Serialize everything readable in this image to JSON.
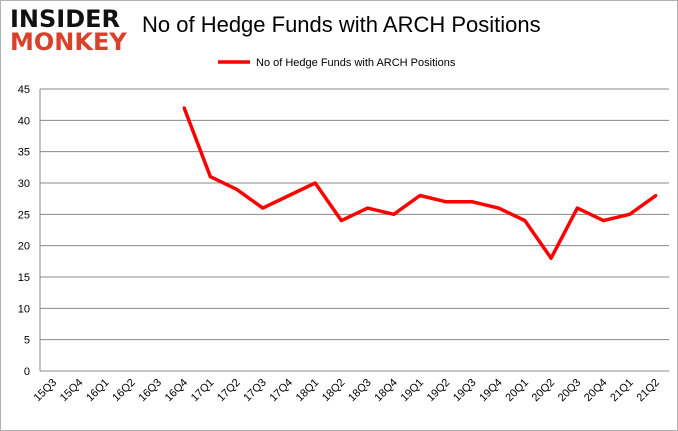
{
  "logo": {
    "line1": "INSIDER",
    "line2": "MONKEY"
  },
  "chart_data": {
    "type": "line",
    "title": "No of Hedge Funds with ARCH Positions",
    "xlabel": "",
    "ylabel": "",
    "ylim": [
      0,
      45
    ],
    "yticks": [
      0,
      5,
      10,
      15,
      20,
      25,
      30,
      35,
      40,
      45
    ],
    "grid": true,
    "legend_placement": "top-center",
    "categories": [
      "15Q3",
      "15Q4",
      "16Q1",
      "16Q2",
      "16Q3",
      "16Q4",
      "17Q1",
      "17Q2",
      "17Q3",
      "17Q4",
      "18Q1",
      "18Q2",
      "18Q3",
      "18Q4",
      "19Q1",
      "19Q2",
      "19Q3",
      "19Q4",
      "20Q1",
      "20Q2",
      "20Q3",
      "20Q4",
      "21Q1",
      "21Q2"
    ],
    "series": [
      {
        "name": "No of Hedge Funds with ARCH Positions",
        "color": "#ff0000",
        "values": [
          null,
          null,
          null,
          null,
          null,
          42,
          31,
          29,
          26,
          28,
          30,
          24,
          26,
          25,
          28,
          27,
          27,
          26,
          24,
          18,
          26,
          24,
          25,
          28
        ]
      }
    ]
  }
}
